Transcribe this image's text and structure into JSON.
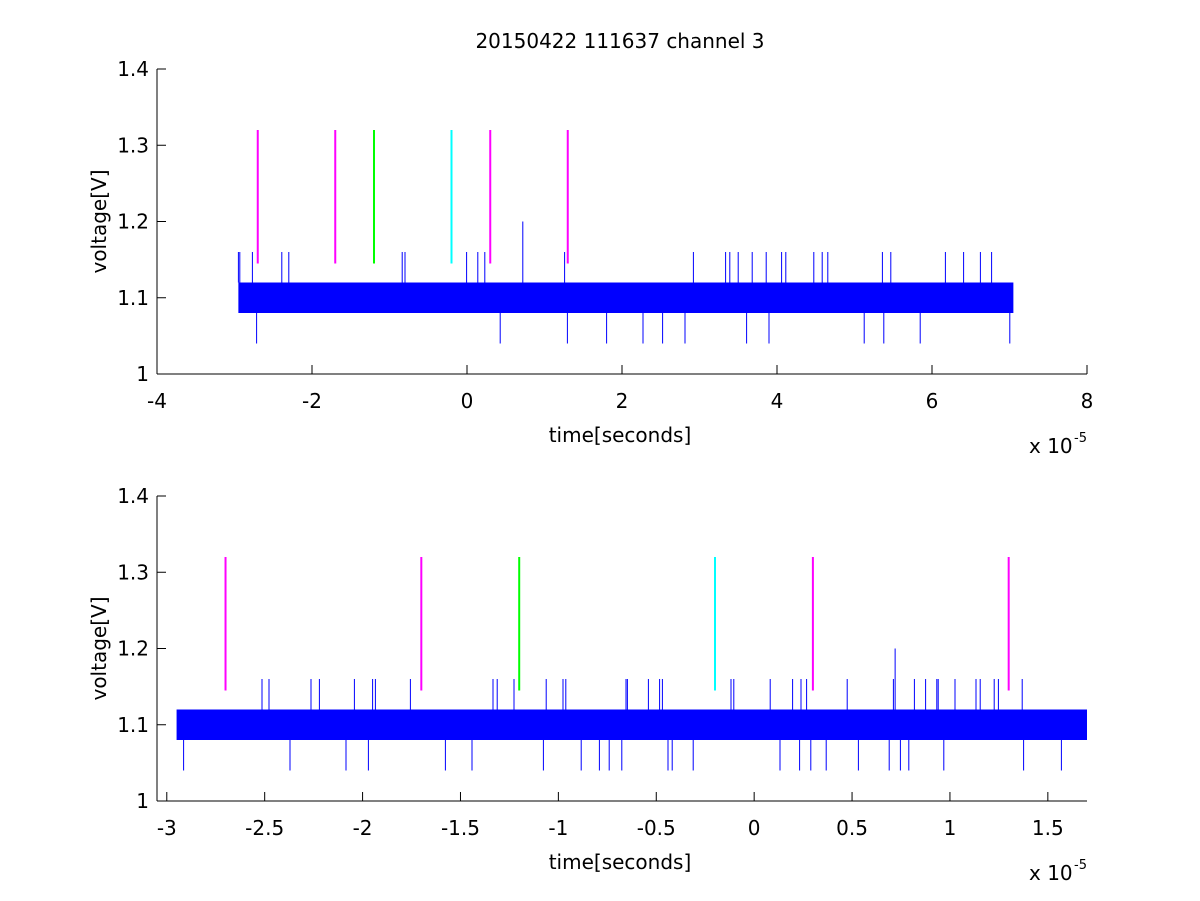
{
  "figure_title": "20150422 111637 channel 3",
  "chart_data": [
    {
      "type": "line",
      "title": "20150422 111637 channel 3",
      "xlabel": "time[seconds]",
      "ylabel": "voltage[V]",
      "x_multiplier": "x 10",
      "x_multiplier_exponent": "-5",
      "xlim": [
        -4e-05,
        8e-05
      ],
      "ylim": [
        1.0,
        1.4
      ],
      "x_ticks": [
        -4,
        -2,
        0,
        2,
        4,
        6,
        8
      ],
      "x_tick_labels": [
        "-4",
        "-2",
        "0",
        "2",
        "4",
        "6",
        "8"
      ],
      "y_ticks": [
        1.0,
        1.1,
        1.2,
        1.3,
        1.4
      ],
      "y_tick_labels": [
        "1",
        "1.1",
        "1.2",
        "1.3",
        "1.4"
      ],
      "grid": false,
      "series": [
        {
          "type": "noise_trace",
          "color": "#0000ff",
          "x_range": [
            -2.95e-05,
            7.05e-05
          ],
          "band": [
            1.08,
            1.12
          ],
          "high_spike_level": 1.16,
          "low_spike_level": 1.04,
          "peak_spike": {
            "x": 7.2e-06,
            "y": 1.2
          }
        }
      ],
      "markers": [
        {
          "x": -2.7e-05,
          "y0": 1.145,
          "y1": 1.32,
          "color": "#ff00ff"
        },
        {
          "x": -1.7e-05,
          "y0": 1.145,
          "y1": 1.32,
          "color": "#ff00ff"
        },
        {
          "x": -1.2e-05,
          "y0": 1.145,
          "y1": 1.32,
          "color": "#00ff00"
        },
        {
          "x": -2e-06,
          "y0": 1.145,
          "y1": 1.32,
          "color": "#00ffff"
        },
        {
          "x": 3e-06,
          "y0": 1.145,
          "y1": 1.32,
          "color": "#ff00ff"
        },
        {
          "x": 1.3e-05,
          "y0": 1.145,
          "y1": 1.32,
          "color": "#ff00ff"
        }
      ]
    },
    {
      "type": "line",
      "title": "",
      "xlabel": "time[seconds]",
      "ylabel": "voltage[V]",
      "x_multiplier": "x 10",
      "x_multiplier_exponent": "-5",
      "xlim": [
        -3.05e-05,
        1.7e-05
      ],
      "ylim": [
        1.0,
        1.4
      ],
      "x_ticks": [
        -3,
        -2.5,
        -2,
        -1.5,
        -1,
        -0.5,
        0,
        0.5,
        1,
        1.5
      ],
      "x_tick_labels": [
        "-3",
        "-2.5",
        "-2",
        "-1.5",
        "-1",
        "-0.5",
        "0",
        "0.5",
        "1",
        "1.5"
      ],
      "y_ticks": [
        1.0,
        1.1,
        1.2,
        1.3,
        1.4
      ],
      "y_tick_labels": [
        "1",
        "1.1",
        "1.2",
        "1.3",
        "1.4"
      ],
      "grid": false,
      "series": [
        {
          "type": "noise_trace",
          "color": "#0000ff",
          "x_range": [
            -2.95e-05,
            1.7e-05
          ],
          "band": [
            1.08,
            1.12
          ],
          "high_spike_level": 1.16,
          "low_spike_level": 1.04,
          "peak_spike": {
            "x": 7.2e-06,
            "y": 1.2
          }
        }
      ],
      "markers": [
        {
          "x": -2.7e-05,
          "y0": 1.145,
          "y1": 1.32,
          "color": "#ff00ff"
        },
        {
          "x": -1.7e-05,
          "y0": 1.145,
          "y1": 1.32,
          "color": "#ff00ff"
        },
        {
          "x": -1.2e-05,
          "y0": 1.145,
          "y1": 1.32,
          "color": "#00ff00"
        },
        {
          "x": -2e-06,
          "y0": 1.145,
          "y1": 1.32,
          "color": "#00ffff"
        },
        {
          "x": 3e-06,
          "y0": 1.145,
          "y1": 1.32,
          "color": "#ff00ff"
        },
        {
          "x": 1.3e-05,
          "y0": 1.145,
          "y1": 1.32,
          "color": "#ff00ff"
        }
      ]
    }
  ]
}
